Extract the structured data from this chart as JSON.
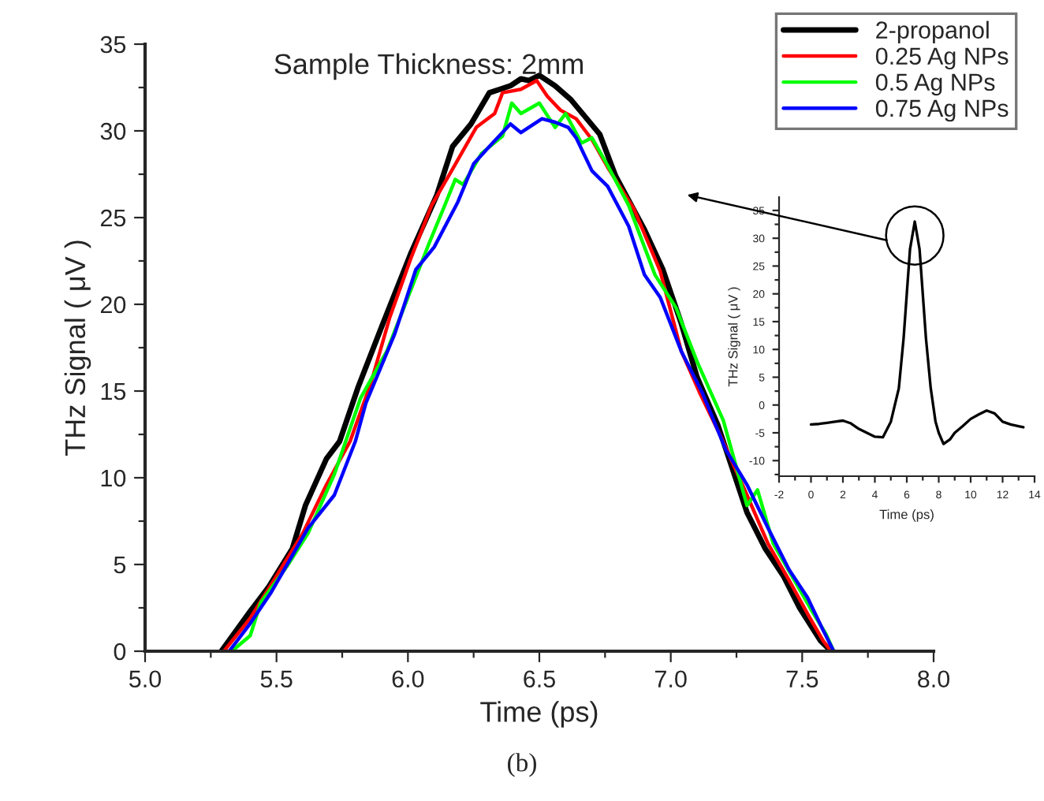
{
  "chart_data": [
    {
      "type": "line",
      "title": "Sample Thickness: 2mm",
      "xlabel": "Time (ps)",
      "ylabel": "THz Signal ( μV )",
      "annotations": [
        "(b)"
      ],
      "xlim": [
        5.0,
        8.0
      ],
      "ylim": [
        0,
        35
      ],
      "xticks": [
        {
          "value": 5,
          "label": "5.0"
        },
        5.5,
        {
          "value": 6,
          "label": "6.0"
        },
        6.5,
        {
          "value": 7,
          "label": "7.0"
        },
        7.5,
        {
          "value": 8,
          "label": "8.0"
        }
      ],
      "yticks": [
        0,
        5,
        10,
        15,
        20,
        25,
        30,
        35
      ],
      "legend": "top right",
      "grid": false,
      "series": [
        {
          "name": "2-propanol",
          "color": "#000000",
          "x": [
            5.29,
            5.4,
            5.47,
            5.56,
            5.61,
            5.69,
            5.74,
            5.81,
            5.9,
            6.01,
            6.11,
            6.17,
            6.24,
            6.31,
            6.35,
            6.39,
            6.43,
            6.46,
            6.5,
            6.56,
            6.62,
            6.73,
            6.79,
            6.9,
            6.97,
            7.04,
            7.1,
            7.18,
            7.29,
            7.36,
            7.43,
            7.49,
            7.57,
            7.61
          ],
          "values": [
            0,
            2.3,
            3.7,
            5.9,
            8.4,
            11.1,
            12.1,
            15.2,
            18.7,
            22.9,
            26.3,
            29.1,
            30.4,
            32.2,
            32.4,
            32.6,
            33.0,
            32.9,
            33.2,
            32.6,
            31.8,
            29.8,
            27.4,
            24.3,
            22.0,
            18.9,
            15.8,
            13.0,
            8.0,
            5.9,
            4.3,
            2.5,
            0.6,
            0
          ]
        },
        {
          "name": "0.25 Ag NPs",
          "color": "#ff0000",
          "x": [
            5.3,
            5.4,
            5.49,
            5.6,
            5.69,
            5.78,
            5.86,
            5.93,
            6.01,
            6.09,
            6.17,
            6.26,
            6.33,
            6.36,
            6.43,
            6.49,
            6.53,
            6.58,
            6.64,
            6.7,
            6.76,
            6.86,
            6.96,
            7.04,
            7.11,
            7.19,
            7.29,
            7.37,
            7.45,
            7.53,
            7.58,
            7.61
          ],
          "values": [
            0,
            1.9,
            4.1,
            6.8,
            9.6,
            12.1,
            15.5,
            19.2,
            22.6,
            25.7,
            27.8,
            30.2,
            31.0,
            32.2,
            32.4,
            32.9,
            32.0,
            31.2,
            30.7,
            29.5,
            27.9,
            25.5,
            21.9,
            17.3,
            14.9,
            12.4,
            9.0,
            6.2,
            4.1,
            1.9,
            0.6,
            0
          ]
        },
        {
          "name": "0.5 Ag NPs",
          "color": "#00ff00",
          "x": [
            5.33,
            5.4,
            5.44,
            5.54,
            5.62,
            5.72,
            5.82,
            5.92,
            6.0,
            6.08,
            6.14,
            6.18,
            6.21,
            6.28,
            6.36,
            6.395,
            6.43,
            6.5,
            6.56,
            6.6,
            6.66,
            6.7,
            6.76,
            6.84,
            6.94,
            7.02,
            7.1,
            7.2,
            7.29,
            7.33,
            7.39,
            7.47,
            7.53,
            7.59,
            7.62
          ],
          "values": [
            0,
            0.9,
            2.8,
            4.9,
            6.8,
            10.2,
            14.6,
            17.3,
            20.4,
            23.5,
            25.7,
            27.2,
            26.9,
            28.7,
            29.7,
            31.6,
            31.0,
            31.6,
            30.2,
            31.0,
            29.3,
            29.6,
            28.0,
            25.7,
            21.7,
            19.8,
            16.7,
            13.3,
            8.4,
            9.3,
            6.2,
            4.1,
            2.5,
            1.0,
            0
          ]
        },
        {
          "name": "0.75 Ag NPs",
          "color": "#0000ff",
          "x": [
            5.32,
            5.4,
            5.48,
            5.62,
            5.72,
            5.8,
            5.84,
            5.95,
            6.03,
            6.1,
            6.19,
            6.25,
            6.31,
            6.39,
            6.43,
            6.51,
            6.56,
            6.61,
            6.64,
            6.7,
            6.76,
            6.84,
            6.9,
            6.96,
            7.04,
            7.12,
            7.21,
            7.29,
            7.37,
            7.45,
            7.52,
            7.58,
            7.62
          ],
          "values": [
            0,
            1.6,
            3.4,
            7.1,
            9.0,
            12.1,
            14.3,
            18.3,
            22.0,
            23.3,
            25.9,
            28.1,
            29.1,
            30.4,
            29.9,
            30.7,
            30.5,
            30.2,
            29.6,
            27.7,
            26.8,
            24.5,
            21.7,
            20.4,
            17.3,
            14.9,
            11.6,
            9.6,
            7.1,
            4.7,
            3.1,
            1.2,
            0
          ]
        }
      ]
    },
    {
      "type": "line",
      "xlabel": "Time (ps)",
      "ylabel": "THz Signal ( μV )",
      "xlim": [
        -2,
        14
      ],
      "ylim": [
        -12.8,
        37.4
      ],
      "xticks": [
        -2,
        0,
        2,
        4,
        6,
        8,
        10,
        12,
        14
      ],
      "yticks": [
        -10,
        -5,
        0,
        5,
        10,
        15,
        20,
        25,
        30,
        35
      ],
      "grid": false,
      "series": [
        {
          "color": "#000000",
          "x": [
            0,
            0.5,
            1,
            1.5,
            2,
            2.5,
            3,
            3.5,
            4,
            4.5,
            5,
            5.5,
            5.8,
            6,
            6.2,
            6.5,
            6.8,
            7,
            7.2,
            7.5,
            7.8,
            8,
            8.3,
            8.7,
            9,
            9.5,
            10,
            10.5,
            11,
            11.5,
            12,
            12.5,
            13,
            13.3
          ],
          "values": [
            -3.5,
            -3.4,
            -3.2,
            -3,
            -2.8,
            -3.3,
            -4.3,
            -5,
            -5.7,
            -5.8,
            -3,
            3,
            12,
            20,
            28,
            33,
            28,
            20,
            12,
            3,
            -3,
            -5,
            -7,
            -6.2,
            -5,
            -3.8,
            -2.5,
            -1.7,
            -1,
            -1.5,
            -3,
            -3.5,
            -3.8,
            -4
          ]
        }
      ]
    }
  ]
}
